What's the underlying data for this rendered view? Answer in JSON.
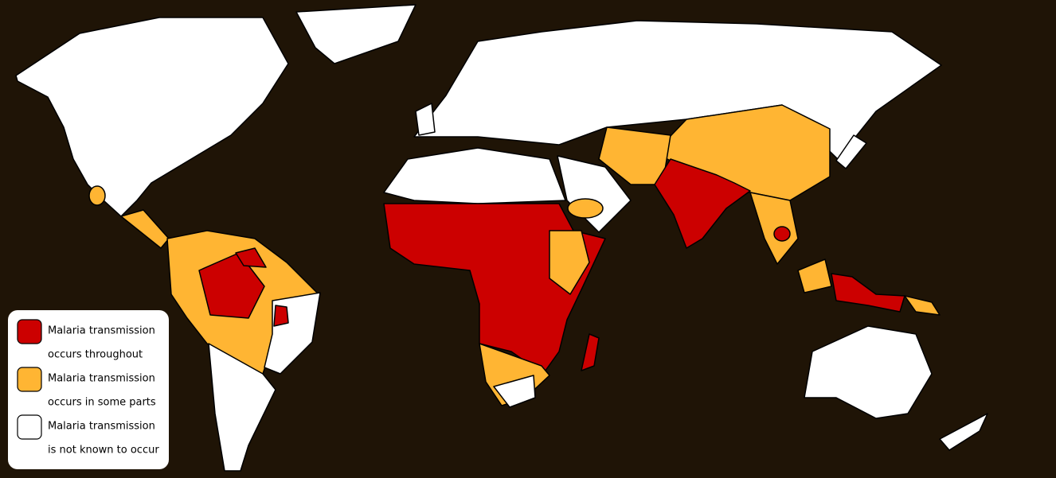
{
  "legend": {
    "items": [
      {
        "color": "#cc0000",
        "lines": [
          "Malaria transmission",
          "occurs throughout"
        ]
      },
      {
        "color": "#ffb533",
        "lines": [
          "Malaria transmission",
          "occurs in some parts"
        ]
      },
      {
        "color": "#ffffff",
        "lines": [
          "Malaria transmission",
          "is not known to occur"
        ]
      }
    ]
  }
}
